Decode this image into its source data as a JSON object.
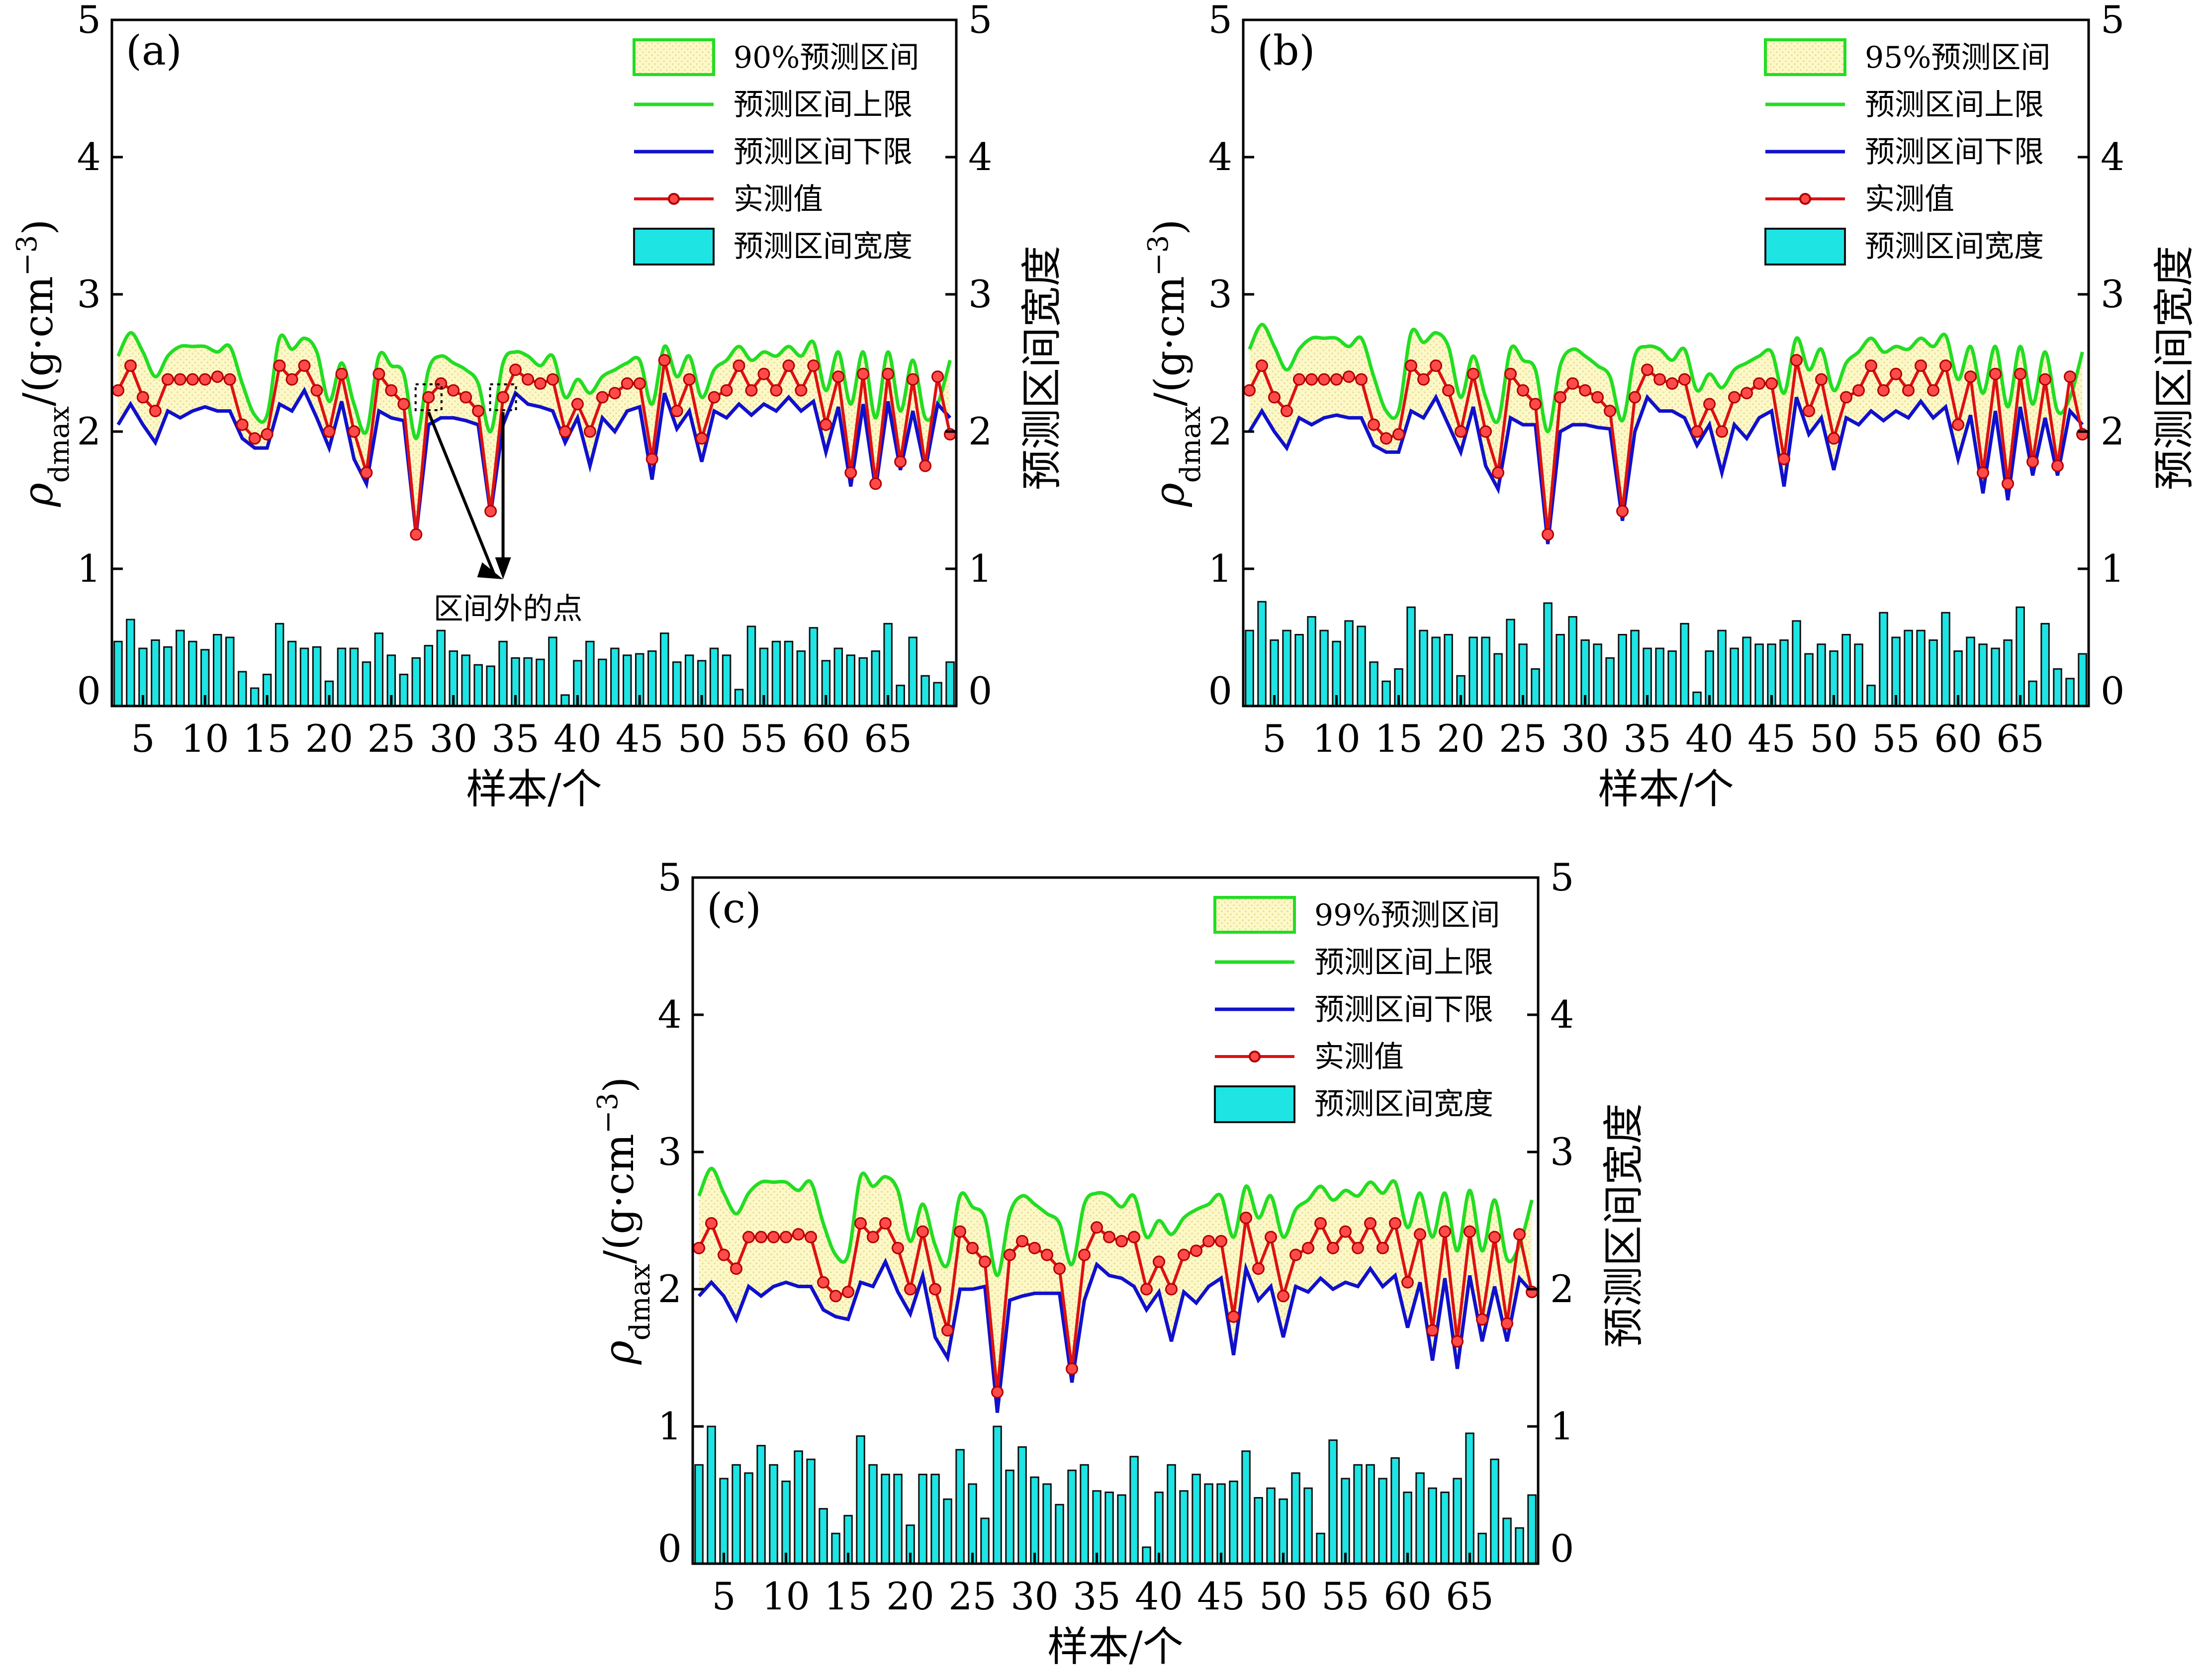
{
  "shared": {
    "x_axis_title": "样本/个",
    "y_left_title_symbol": "ρ",
    "y_left_title_sub": "dmax",
    "y_left_title_unit": "/(g·cm",
    "y_left_title_exp": "−3",
    "y_left_title_close": ")",
    "y_right_title": "预测区间宽度",
    "legend": {
      "upper_label": "预测区间上限",
      "lower_label": "预测区间下限",
      "measured_label": "实测值",
      "width_label": "预测区间宽度"
    },
    "x_ticks": [
      5,
      10,
      15,
      20,
      25,
      30,
      35,
      40,
      45,
      50,
      55,
      60,
      65
    ],
    "y_ticks": [
      0,
      1,
      2,
      3,
      4,
      5
    ],
    "colors": {
      "band_fill": "#fdf8c8",
      "band_dots": "#e8d98a",
      "upper_line": "#22dd22",
      "lower_line": "#1010cc",
      "measured_line": "#dd1111",
      "marker_fill": "#ff4a4a",
      "bar_fill": "#1ee4e4",
      "bar_edge": "#111111"
    }
  },
  "chart_data": [
    {
      "panel_label": "(a)",
      "type": "line",
      "legend_band_label": "90%预测区间",
      "annotation": "区间外的点",
      "x_range": [
        2.5,
        70.5
      ],
      "ylim": [
        0,
        5
      ],
      "y2lim": [
        0,
        5
      ],
      "x": [
        3,
        4,
        5,
        6,
        7,
        8,
        9,
        10,
        11,
        12,
        13,
        14,
        15,
        16,
        17,
        18,
        19,
        20,
        21,
        22,
        23,
        24,
        25,
        26,
        27,
        28,
        29,
        30,
        31,
        32,
        33,
        34,
        35,
        36,
        37,
        38,
        39,
        40,
        41,
        42,
        43,
        44,
        45,
        46,
        47,
        48,
        49,
        50,
        51,
        52,
        53,
        54,
        55,
        56,
        57,
        58,
        59,
        60,
        61,
        62,
        63,
        64,
        65,
        66,
        67,
        68,
        69,
        70
      ],
      "series": [
        {
          "name": "实测值",
          "values": [
            2.3,
            2.48,
            2.25,
            2.15,
            2.38,
            2.38,
            2.38,
            2.38,
            2.4,
            2.38,
            2.05,
            1.95,
            1.98,
            2.48,
            2.38,
            2.48,
            2.3,
            2.0,
            2.42,
            2.0,
            1.7,
            2.42,
            2.3,
            2.2,
            1.25,
            2.25,
            2.35,
            2.3,
            2.25,
            2.15,
            1.42,
            2.25,
            2.45,
            2.38,
            2.35,
            2.38,
            2.0,
            2.2,
            2.0,
            2.25,
            2.28,
            2.35,
            2.35,
            1.8,
            2.52,
            2.15,
            2.38,
            1.95,
            2.25,
            2.3,
            2.48,
            2.3,
            2.42,
            2.3,
            2.48,
            2.3,
            2.48,
            2.05,
            2.4,
            1.7,
            2.42,
            1.62,
            2.42,
            1.78,
            2.38,
            1.75,
            2.4,
            1.98
          ]
        },
        {
          "name": "预测区间上限",
          "values": [
            2.55,
            2.72,
            2.58,
            2.4,
            2.55,
            2.62,
            2.62,
            2.62,
            2.58,
            2.62,
            2.35,
            2.12,
            2.12,
            2.68,
            2.6,
            2.68,
            2.58,
            2.22,
            2.5,
            2.2,
            2.0,
            2.55,
            2.48,
            2.42,
            1.95,
            2.45,
            2.55,
            2.5,
            2.45,
            2.35,
            2.0,
            2.5,
            2.58,
            2.55,
            2.48,
            2.55,
            2.25,
            2.38,
            2.28,
            2.4,
            2.45,
            2.5,
            2.52,
            2.2,
            2.62,
            2.4,
            2.55,
            2.25,
            2.45,
            2.52,
            2.62,
            2.52,
            2.58,
            2.55,
            2.62,
            2.55,
            2.65,
            2.3,
            2.58,
            2.2,
            2.58,
            2.1,
            2.58,
            2.15,
            2.52,
            2.1,
            2.2,
            2.52
          ]
        },
        {
          "name": "预测区间下限",
          "values": [
            2.05,
            2.2,
            2.05,
            1.92,
            2.15,
            2.1,
            2.15,
            2.18,
            2.15,
            2.15,
            1.95,
            1.88,
            1.88,
            2.2,
            2.15,
            2.3,
            2.1,
            1.88,
            2.22,
            1.8,
            1.62,
            2.15,
            2.1,
            2.08,
            1.25,
            2.05,
            2.1,
            2.1,
            2.08,
            2.05,
            1.4,
            2.05,
            2.28,
            2.2,
            2.18,
            2.15,
            1.92,
            2.1,
            1.75,
            2.1,
            2.0,
            2.15,
            2.18,
            1.65,
            2.28,
            2.02,
            2.15,
            1.78,
            2.15,
            2.1,
            2.2,
            2.12,
            2.2,
            2.15,
            2.25,
            2.15,
            2.22,
            1.85,
            2.18,
            1.6,
            2.2,
            1.58,
            2.22,
            1.72,
            2.15,
            1.72,
            2.2,
            2.1
          ]
        },
        {
          "name": "预测区间宽度",
          "values": [
            0.47,
            0.63,
            0.42,
            0.48,
            0.43,
            0.55,
            0.47,
            0.41,
            0.52,
            0.5,
            0.25,
            0.13,
            0.23,
            0.6,
            0.47,
            0.42,
            0.43,
            0.18,
            0.42,
            0.42,
            0.32,
            0.53,
            0.37,
            0.23,
            0.35,
            0.44,
            0.55,
            0.4,
            0.37,
            0.3,
            0.29,
            0.47,
            0.35,
            0.35,
            0.34,
            0.5,
            0.08,
            0.33,
            0.47,
            0.34,
            0.42,
            0.37,
            0.38,
            0.4,
            0.53,
            0.32,
            0.37,
            0.33,
            0.42,
            0.37,
            0.12,
            0.58,
            0.42,
            0.47,
            0.47,
            0.4,
            0.57,
            0.33,
            0.42,
            0.37,
            0.35,
            0.4,
            0.6,
            0.15,
            0.5,
            0.22,
            0.17,
            0.32
          ]
        }
      ]
    },
    {
      "panel_label": "(b)",
      "type": "line",
      "legend_band_label": "95%预测区间",
      "x_range": [
        2.5,
        70.5
      ],
      "ylim": [
        0,
        5
      ],
      "y2lim": [
        0,
        5
      ],
      "x": [
        3,
        4,
        5,
        6,
        7,
        8,
        9,
        10,
        11,
        12,
        13,
        14,
        15,
        16,
        17,
        18,
        19,
        20,
        21,
        22,
        23,
        24,
        25,
        26,
        27,
        28,
        29,
        30,
        31,
        32,
        33,
        34,
        35,
        36,
        37,
        38,
        39,
        40,
        41,
        42,
        43,
        44,
        45,
        46,
        47,
        48,
        49,
        50,
        51,
        52,
        53,
        54,
        55,
        56,
        57,
        58,
        59,
        60,
        61,
        62,
        63,
        64,
        65,
        66,
        67,
        68,
        69,
        70
      ],
      "series": [
        {
          "name": "实测值",
          "values": [
            2.3,
            2.48,
            2.25,
            2.15,
            2.38,
            2.38,
            2.38,
            2.38,
            2.4,
            2.38,
            2.05,
            1.95,
            1.98,
            2.48,
            2.38,
            2.48,
            2.3,
            2.0,
            2.42,
            2.0,
            1.7,
            2.42,
            2.3,
            2.2,
            1.25,
            2.25,
            2.35,
            2.3,
            2.25,
            2.15,
            1.42,
            2.25,
            2.45,
            2.38,
            2.35,
            2.38,
            2.0,
            2.2,
            2.0,
            2.25,
            2.28,
            2.35,
            2.35,
            1.8,
            2.52,
            2.15,
            2.38,
            1.95,
            2.25,
            2.3,
            2.48,
            2.3,
            2.42,
            2.3,
            2.48,
            2.3,
            2.48,
            2.05,
            2.4,
            1.7,
            2.42,
            1.62,
            2.42,
            1.78,
            2.38,
            1.75,
            2.4,
            1.98
          ]
        },
        {
          "name": "预测区间上限",
          "values": [
            2.6,
            2.78,
            2.62,
            2.45,
            2.6,
            2.68,
            2.68,
            2.68,
            2.62,
            2.68,
            2.4,
            2.15,
            2.15,
            2.72,
            2.65,
            2.72,
            2.62,
            2.25,
            2.55,
            2.25,
            2.08,
            2.6,
            2.52,
            2.45,
            2.0,
            2.48,
            2.6,
            2.55,
            2.48,
            2.4,
            2.08,
            2.55,
            2.62,
            2.6,
            2.52,
            2.6,
            2.3,
            2.42,
            2.32,
            2.45,
            2.5,
            2.55,
            2.58,
            2.28,
            2.68,
            2.45,
            2.6,
            2.3,
            2.5,
            2.58,
            2.68,
            2.58,
            2.62,
            2.6,
            2.68,
            2.62,
            2.7,
            2.38,
            2.62,
            2.28,
            2.62,
            2.18,
            2.62,
            2.2,
            2.58,
            2.15,
            2.25,
            2.58
          ]
        },
        {
          "name": "预测区间下限",
          "values": [
            2.0,
            2.15,
            2.0,
            1.88,
            2.1,
            2.05,
            2.1,
            2.12,
            2.1,
            2.1,
            1.9,
            1.85,
            1.85,
            2.15,
            2.1,
            2.25,
            2.05,
            1.85,
            2.18,
            1.75,
            1.58,
            2.1,
            2.05,
            2.05,
            1.18,
            2.0,
            2.05,
            2.05,
            2.03,
            2.02,
            1.35,
            2.0,
            2.25,
            2.15,
            2.15,
            2.1,
            1.9,
            2.05,
            1.7,
            2.05,
            1.95,
            2.1,
            2.15,
            1.6,
            2.25,
            1.98,
            2.1,
            1.72,
            2.1,
            2.05,
            2.15,
            2.08,
            2.15,
            2.1,
            2.22,
            2.1,
            2.18,
            1.8,
            2.12,
            1.55,
            2.15,
            1.5,
            2.18,
            1.68,
            2.1,
            1.68,
            2.15,
            2.05
          ]
        },
        {
          "name": "预测区间宽度",
          "values": [
            0.55,
            0.76,
            0.48,
            0.55,
            0.52,
            0.65,
            0.55,
            0.47,
            0.62,
            0.58,
            0.32,
            0.18,
            0.27,
            0.72,
            0.55,
            0.5,
            0.52,
            0.22,
            0.5,
            0.5,
            0.38,
            0.63,
            0.45,
            0.27,
            0.75,
            0.52,
            0.65,
            0.48,
            0.45,
            0.35,
            0.52,
            0.55,
            0.42,
            0.42,
            0.4,
            0.6,
            0.1,
            0.4,
            0.55,
            0.42,
            0.5,
            0.45,
            0.45,
            0.48,
            0.62,
            0.38,
            0.45,
            0.4,
            0.52,
            0.45,
            0.15,
            0.68,
            0.5,
            0.55,
            0.55,
            0.48,
            0.68,
            0.4,
            0.5,
            0.45,
            0.42,
            0.48,
            0.72,
            0.18,
            0.6,
            0.27,
            0.2,
            0.38
          ]
        }
      ]
    },
    {
      "panel_label": "(c)",
      "type": "line",
      "legend_band_label": "99%预测区间",
      "x_range": [
        2.5,
        70.5
      ],
      "ylim": [
        0,
        5
      ],
      "y2lim": [
        0,
        5
      ],
      "x": [
        3,
        4,
        5,
        6,
        7,
        8,
        9,
        10,
        11,
        12,
        13,
        14,
        15,
        16,
        17,
        18,
        19,
        20,
        21,
        22,
        23,
        24,
        25,
        26,
        27,
        28,
        29,
        30,
        31,
        32,
        33,
        34,
        35,
        36,
        37,
        38,
        39,
        40,
        41,
        42,
        43,
        44,
        45,
        46,
        47,
        48,
        49,
        50,
        51,
        52,
        53,
        54,
        55,
        56,
        57,
        58,
        59,
        60,
        61,
        62,
        63,
        64,
        65,
        66,
        67,
        68,
        69,
        70
      ],
      "series": [
        {
          "name": "实测值",
          "values": [
            2.3,
            2.48,
            2.25,
            2.15,
            2.38,
            2.38,
            2.38,
            2.38,
            2.4,
            2.38,
            2.05,
            1.95,
            1.98,
            2.48,
            2.38,
            2.48,
            2.3,
            2.0,
            2.42,
            2.0,
            1.7,
            2.42,
            2.3,
            2.2,
            1.25,
            2.25,
            2.35,
            2.3,
            2.25,
            2.15,
            1.42,
            2.25,
            2.45,
            2.38,
            2.35,
            2.38,
            2.0,
            2.2,
            2.0,
            2.25,
            2.28,
            2.35,
            2.35,
            1.8,
            2.52,
            2.15,
            2.38,
            1.95,
            2.25,
            2.3,
            2.48,
            2.3,
            2.42,
            2.3,
            2.48,
            2.3,
            2.48,
            2.05,
            2.4,
            1.7,
            2.42,
            1.62,
            2.42,
            1.78,
            2.38,
            1.75,
            2.4,
            1.98
          ]
        },
        {
          "name": "预测区间上限",
          "values": [
            2.68,
            2.88,
            2.7,
            2.55,
            2.7,
            2.78,
            2.78,
            2.78,
            2.72,
            2.78,
            2.48,
            2.25,
            2.25,
            2.82,
            2.75,
            2.82,
            2.72,
            2.35,
            2.62,
            2.32,
            2.18,
            2.68,
            2.6,
            2.52,
            2.1,
            2.55,
            2.68,
            2.62,
            2.55,
            2.48,
            2.18,
            2.62,
            2.7,
            2.68,
            2.6,
            2.68,
            2.38,
            2.5,
            2.4,
            2.52,
            2.58,
            2.62,
            2.68,
            2.38,
            2.75,
            2.52,
            2.68,
            2.38,
            2.58,
            2.65,
            2.75,
            2.65,
            2.72,
            2.68,
            2.78,
            2.7,
            2.78,
            2.45,
            2.7,
            2.38,
            2.7,
            2.28,
            2.72,
            2.28,
            2.65,
            2.22,
            2.32,
            2.65
          ]
        },
        {
          "name": "预测区间下限",
          "values": [
            1.95,
            2.05,
            1.95,
            1.78,
            2.02,
            1.95,
            2.02,
            2.05,
            2.02,
            2.02,
            1.85,
            1.8,
            1.78,
            2.05,
            2.02,
            2.2,
            1.98,
            1.82,
            2.1,
            1.65,
            1.5,
            2.0,
            2.0,
            2.02,
            1.1,
            1.92,
            1.95,
            1.97,
            1.97,
            1.97,
            1.32,
            1.92,
            2.18,
            2.1,
            2.08,
            2.02,
            1.85,
            1.98,
            1.62,
            1.98,
            1.9,
            2.02,
            2.08,
            1.52,
            2.15,
            1.92,
            2.02,
            1.65,
            2.02,
            1.98,
            2.08,
            2.0,
            2.05,
            2.02,
            2.15,
            2.02,
            2.1,
            1.72,
            2.05,
            1.48,
            2.08,
            1.42,
            2.1,
            1.62,
            2.02,
            1.62,
            2.08,
            1.98
          ]
        },
        {
          "name": "预测区间宽度",
          "values": [
            0.72,
            1.0,
            0.62,
            0.72,
            0.66,
            0.86,
            0.72,
            0.6,
            0.82,
            0.76,
            0.4,
            0.22,
            0.35,
            0.93,
            0.72,
            0.65,
            0.65,
            0.28,
            0.65,
            0.65,
            0.47,
            0.83,
            0.58,
            0.33,
            1.0,
            0.68,
            0.85,
            0.63,
            0.58,
            0.43,
            0.68,
            0.72,
            0.53,
            0.52,
            0.5,
            0.78,
            0.12,
            0.52,
            0.72,
            0.53,
            0.65,
            0.58,
            0.58,
            0.6,
            0.82,
            0.48,
            0.55,
            0.47,
            0.66,
            0.55,
            0.22,
            0.9,
            0.62,
            0.72,
            0.72,
            0.62,
            0.77,
            0.52,
            0.66,
            0.55,
            0.52,
            0.62,
            0.95,
            0.22,
            0.76,
            0.33,
            0.26,
            0.5
          ]
        }
      ]
    }
  ]
}
